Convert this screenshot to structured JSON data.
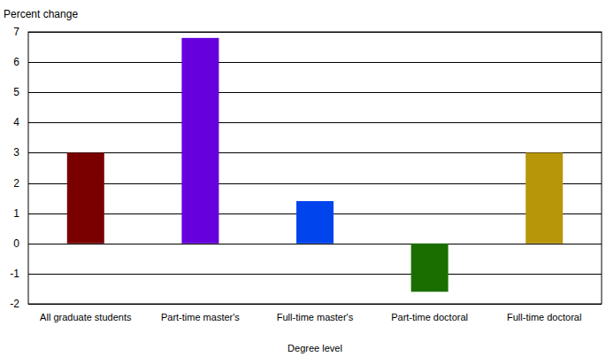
{
  "chart_data": {
    "type": "bar",
    "y_label": "Percent change",
    "x_label": "Degree level",
    "categories": [
      "All graduate students",
      "Part-time master's",
      "Full-time master's",
      "Part-time doctoral",
      "Full-time doctoral"
    ],
    "values": [
      3.0,
      6.8,
      1.4,
      -1.6,
      3.0
    ],
    "colors": [
      "#7a0000",
      "#6600dd",
      "#0044ee",
      "#1a6e00",
      "#b8960a"
    ],
    "ylim": [
      -2,
      7
    ],
    "yticks": [
      -2,
      -1,
      0,
      1,
      2,
      3,
      4,
      5,
      6,
      7
    ],
    "grid": true
  }
}
